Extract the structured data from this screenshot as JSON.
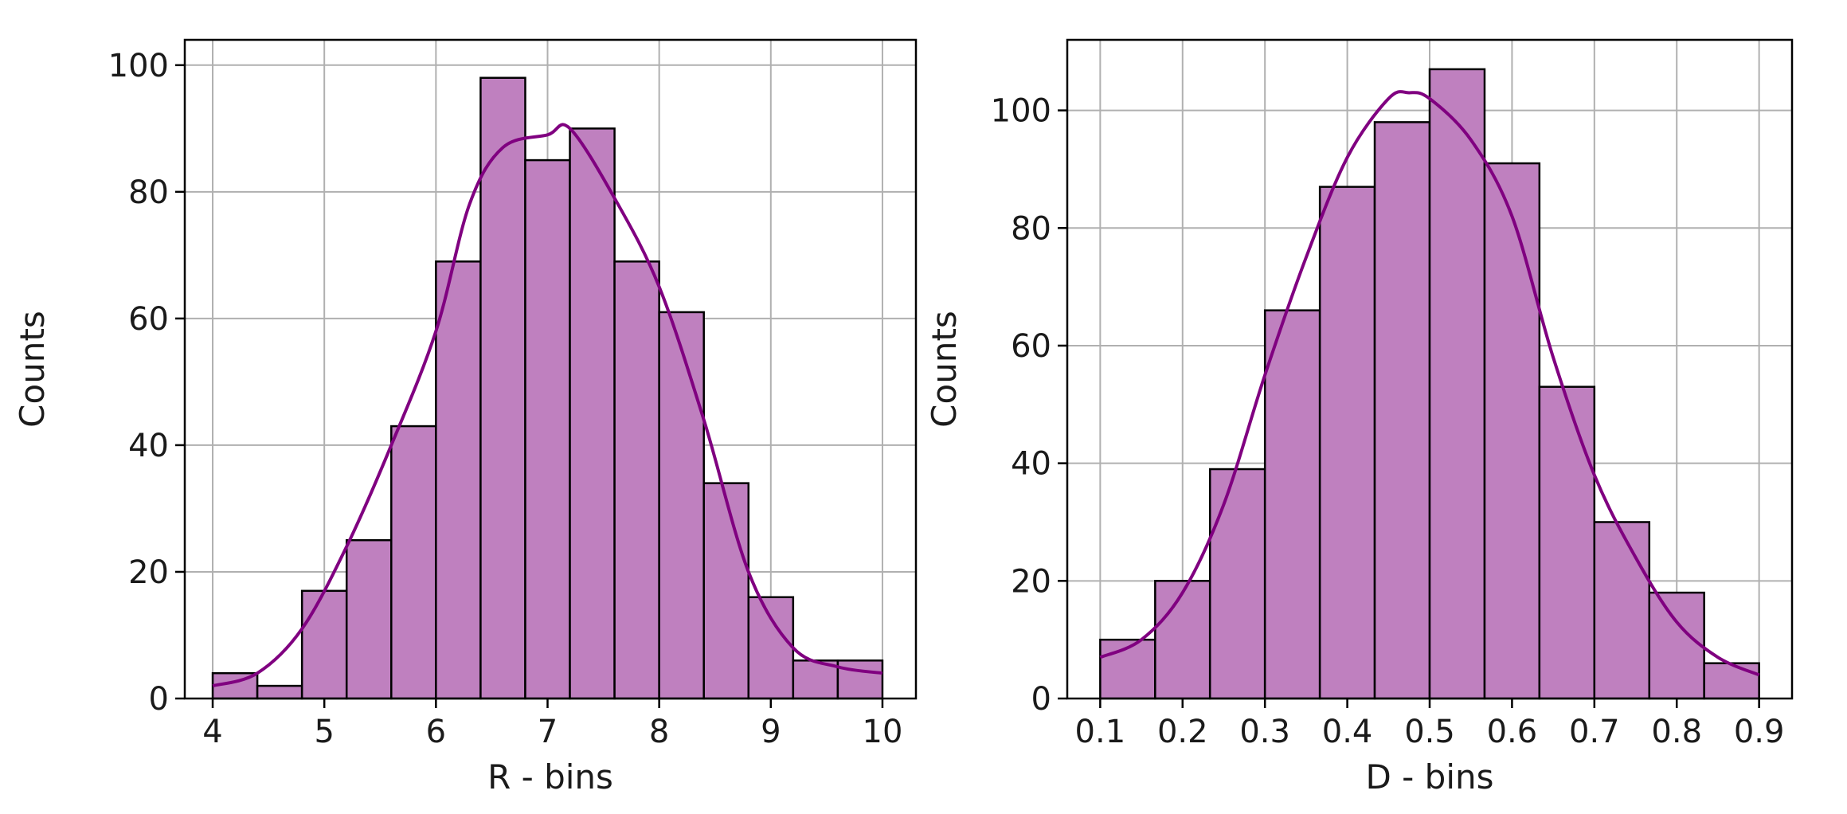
{
  "chart_data": [
    {
      "type": "bar",
      "xlabel": "R - bins",
      "ylabel": "Counts",
      "bin_edges": [
        4.0,
        4.4,
        4.8,
        5.2,
        5.6,
        6.0,
        6.4,
        6.8,
        7.2,
        7.6,
        8.0,
        8.4,
        8.8,
        9.2,
        9.6,
        10.0
      ],
      "values": [
        4,
        2,
        17,
        25,
        43,
        69,
        98,
        85,
        90,
        69,
        61,
        34,
        16,
        6,
        6
      ],
      "kde": {
        "x": [
          4.0,
          4.4,
          4.8,
          5.2,
          5.6,
          6.0,
          6.3,
          6.6,
          7.0,
          7.2,
          7.6,
          8.0,
          8.4,
          8.8,
          9.2,
          9.6,
          10.0
        ],
        "y": [
          2,
          4,
          11,
          24,
          40,
          58,
          78,
          87,
          89,
          90,
          79,
          65,
          44,
          20,
          8,
          5,
          4
        ]
      },
      "xlim": [
        3.75,
        10.3
      ],
      "ylim": [
        0,
        104
      ],
      "xticks": [
        "4",
        "5",
        "6",
        "7",
        "8",
        "9",
        "10"
      ],
      "xtick_values": [
        4,
        5,
        6,
        7,
        8,
        9,
        10
      ],
      "yticks": [
        "0",
        "20",
        "40",
        "60",
        "80",
        "100"
      ],
      "ytick_values": [
        0,
        20,
        40,
        60,
        80,
        100
      ],
      "grid": true
    },
    {
      "type": "bar",
      "xlabel": "D - bins",
      "ylabel": "Counts",
      "bin_edges": [
        0.1,
        0.1667,
        0.2333,
        0.3,
        0.3667,
        0.4333,
        0.5,
        0.5667,
        0.6333,
        0.7,
        0.7667,
        0.8333,
        0.9
      ],
      "values": [
        10,
        20,
        39,
        66,
        87,
        98,
        107,
        91,
        53,
        30,
        18,
        6
      ],
      "kde": {
        "x": [
          0.1,
          0.15,
          0.2,
          0.25,
          0.3,
          0.35,
          0.4,
          0.45,
          0.475,
          0.5,
          0.55,
          0.6,
          0.65,
          0.7,
          0.75,
          0.8,
          0.85,
          0.9
        ],
        "y": [
          7,
          10,
          18,
          33,
          55,
          75,
          92,
          102,
          103,
          102,
          95,
          82,
          58,
          38,
          24,
          13,
          7,
          4
        ]
      },
      "xlim": [
        0.06,
        0.94
      ],
      "ylim": [
        0,
        112
      ],
      "xticks": [
        "0.1",
        "0.2",
        "0.3",
        "0.4",
        "0.5",
        "0.6",
        "0.7",
        "0.8",
        "0.9"
      ],
      "xtick_values": [
        0.1,
        0.2,
        0.3,
        0.4,
        0.5,
        0.6,
        0.7,
        0.8,
        0.9
      ],
      "yticks": [
        "0",
        "20",
        "40",
        "60",
        "80",
        "100"
      ],
      "ytick_values": [
        0,
        20,
        40,
        60,
        80,
        100
      ],
      "grid": true
    }
  ],
  "colors": {
    "bar_fill": "#bf80bf",
    "kde_line": "#800080",
    "grid": "#b0b0b0",
    "edge": "#000000"
  }
}
